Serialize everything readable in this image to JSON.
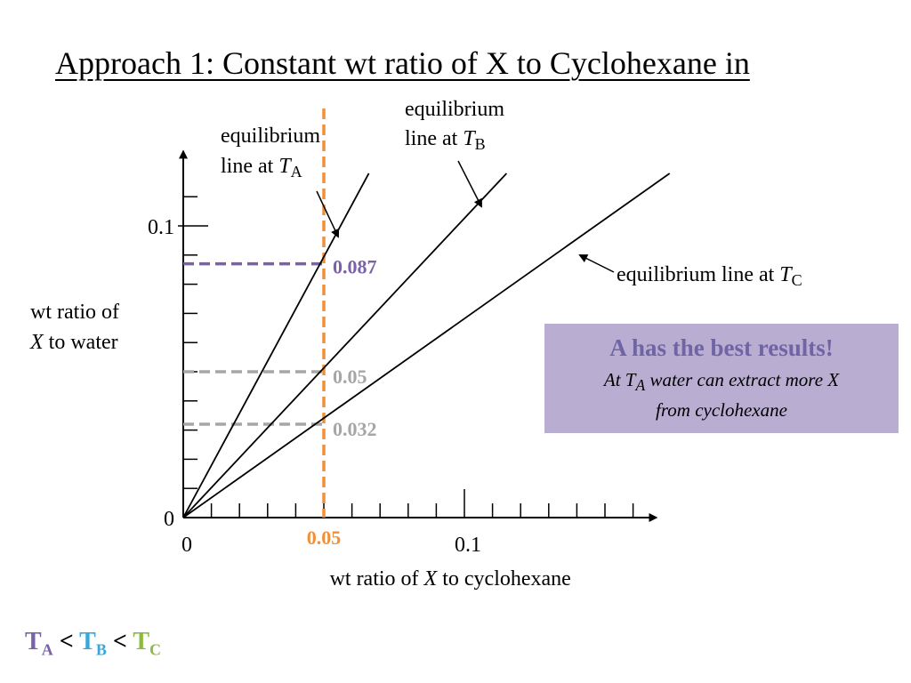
{
  "slide": {
    "title": "Approach 1: Constant wt ratio of X to Cyclohexane in"
  },
  "chart_data": {
    "type": "line",
    "xlabel_prefix": "wt ratio of ",
    "xlabel_var": "X",
    "xlabel_suffix": " to cyclohexane",
    "ylabel_line1": "wt ratio of",
    "ylabel_var": "X",
    "ylabel_suffix": " to water",
    "xlim": [
      0,
      0.165
    ],
    "ylim": [
      0,
      0.12
    ],
    "x_ticks": [
      {
        "value": 0,
        "label": "0"
      },
      {
        "value": 0.1,
        "label": "0.1"
      }
    ],
    "y_ticks": [
      {
        "value": 0,
        "label": "0"
      },
      {
        "value": 0.1,
        "label": "0.1"
      }
    ],
    "x_minor_step": 0.01,
    "y_minor_step": 0.01,
    "series": [
      {
        "id": "TA",
        "x": [
          0,
          0.066
        ],
        "y": [
          0,
          0.118
        ],
        "color": "#000000"
      },
      {
        "id": "TB",
        "x": [
          0,
          0.115
        ],
        "y": [
          0,
          0.118
        ],
        "color": "#000000"
      },
      {
        "id": "TC",
        "x": [
          0,
          0.173
        ],
        "y": [
          0,
          0.118
        ],
        "color": "#000000"
      }
    ],
    "line_labels": [
      {
        "id": "TA",
        "line1": "equilibrium",
        "line2_prefix": "line at ",
        "var": "T",
        "sub": "A"
      },
      {
        "id": "TB",
        "line1": "equilibrium",
        "line2_prefix": "line at ",
        "var": "T",
        "sub": "B"
      },
      {
        "id": "TC",
        "line1": "",
        "line2_prefix": "equilibrium line at ",
        "var": "T",
        "sub": "C"
      }
    ],
    "vertical_marker": {
      "x": 0.05,
      "label": "0.05",
      "color": "#f0913a"
    },
    "horizontal_markers": [
      {
        "y": 0.087,
        "label": "0.087",
        "color": "#7a61a8"
      },
      {
        "y": 0.05,
        "label": "0.05",
        "color": "#a6a6a6"
      },
      {
        "y": 0.032,
        "label": "0.032",
        "color": "#a6a6a6"
      }
    ]
  },
  "callout": {
    "heading": "A has the best results!",
    "line1_prefix": "At ",
    "line1_var": "T",
    "line1_sub": "A",
    "line1_suffix": " water can extract more X",
    "line2": "from cyclohexane"
  },
  "ordering": {
    "t": "T",
    "a": "A",
    "b": "B",
    "c": "C",
    "lt": "<"
  }
}
